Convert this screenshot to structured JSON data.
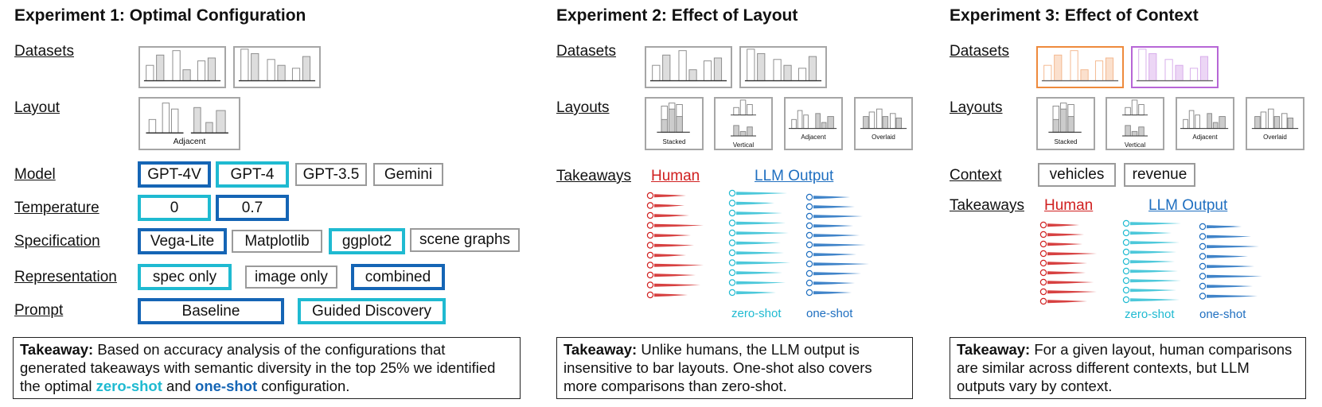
{
  "exp1": {
    "title": "Experiment 1: Optimal Configuration",
    "labels": {
      "datasets": "Datasets",
      "layout": "Layout",
      "model": "Model",
      "temperature": "Temperature",
      "specification": "Specification",
      "representation": "Representation",
      "prompt": "Prompt"
    },
    "layout_caption": "Adjacent",
    "models": [
      "GPT-4V",
      "GPT-4",
      "GPT-3.5",
      "Gemini"
    ],
    "temperatures": [
      "0",
      "0.7"
    ],
    "specifications": [
      "Vega-Lite",
      "Matplotlib",
      "ggplot2",
      "scene graphs"
    ],
    "representations": [
      "spec only",
      "image only",
      "combined"
    ],
    "prompts": [
      "Baseline",
      "Guided Discovery"
    ],
    "takeaway": {
      "bold": "Takeaway:",
      "text_1": " Based on accuracy analysis of the configurations that generated takeaways with semantic diversity in the top 25% we identified the optimal ",
      "zero": "zero-shot",
      "and": " and ",
      "one": "one-shot",
      "text_2": " configuration."
    }
  },
  "exp2": {
    "title": "Experiment 2: Effect of Layout",
    "labels": {
      "datasets": "Datasets",
      "layouts": "Layouts",
      "takeaways": "Takeaways"
    },
    "layouts": [
      "Stacked",
      "Vertical",
      "Adjacent",
      "Overlaid"
    ],
    "human": "Human",
    "llm": "LLM Output",
    "zero_caption": "zero-shot",
    "one_caption": "one-shot",
    "takeaway": {
      "bold": "Takeaway:",
      "text": " Unlike humans, the LLM output is insensitive to bar layouts. One-shot also covers more comparisons than zero-shot."
    }
  },
  "exp3": {
    "title": "Experiment 3: Effect of Context",
    "labels": {
      "datasets": "Datasets",
      "layouts": "Layouts",
      "context": "Context",
      "takeaways": "Takeaways"
    },
    "layouts": [
      "Stacked",
      "Vertical",
      "Adjacent",
      "Overlaid"
    ],
    "contexts": [
      "vehicles",
      "revenue"
    ],
    "human": "Human",
    "llm": "LLM Output",
    "zero_caption": "zero-shot",
    "one_caption": "one-shot",
    "takeaway": {
      "bold": "Takeaway:",
      "text": " For a given layout, human comparisons are similar across different contexts, but LLM outputs vary by context."
    }
  },
  "colors": {
    "dark_blue": "#1565b5",
    "cyan": "#1fbad1",
    "gray_border": "#9a9a9a",
    "human_red": "#d02020",
    "zero_shot": "#1fbad1",
    "one_shot": "#1f6fc0",
    "dataset_orange": "#ee8a3c",
    "dataset_purple": "#b766d6"
  }
}
